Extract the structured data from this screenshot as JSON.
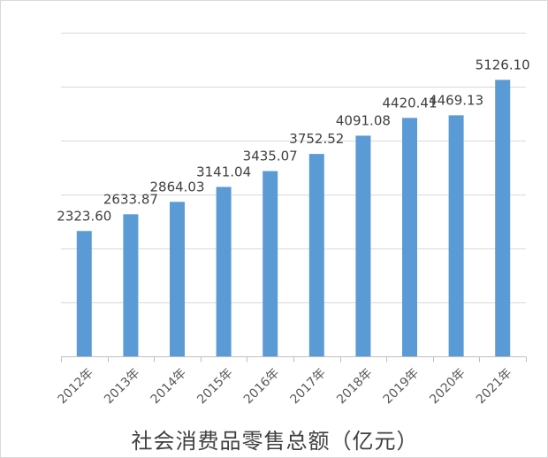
{
  "chart_data": {
    "type": "bar",
    "title": "",
    "xlabel": "社会消费品零售总额（亿元）",
    "ylabel": "",
    "categories": [
      "2012年",
      "2013年",
      "2014年",
      "2015年",
      "2016年",
      "2017年",
      "2018年",
      "2019年",
      "2020年",
      "2021年"
    ],
    "series": [
      {
        "values": [
          2323.6,
          2633.87,
          2864.03,
          3141.04,
          3435.07,
          3752.52,
          4091.08,
          4420.41,
          4469.13,
          5126.1
        ],
        "labels": [
          "2323.60",
          "2633.87",
          "2864.03",
          "3141.04",
          "3435.07",
          "3752.52",
          "4091.08",
          "4420.41",
          "4469.13",
          "5126.10"
        ]
      }
    ],
    "ylim": [
      0,
      6000
    ],
    "yticks": [
      0,
      1000,
      2000,
      3000,
      4000,
      5000,
      6000
    ],
    "y_tick_labels_shown": false,
    "grid": true,
    "legend": "none",
    "bar_color": "#5b9bd5"
  }
}
